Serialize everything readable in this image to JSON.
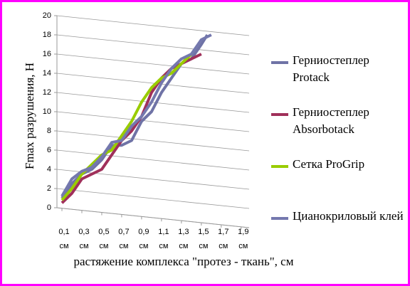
{
  "chart_data": {
    "type": "line",
    "y_label": "Fmax разрушения, Н",
    "x_label": "растяжение  комплекса \"протез  - ткань\", см",
    "xlim": [
      0.05,
      1.98
    ],
    "ylim": [
      0,
      20
    ],
    "yticks": [
      0,
      2,
      4,
      6,
      8,
      10,
      12,
      14,
      16,
      18,
      20
    ],
    "xticks": [
      {
        "value": 0.1,
        "label": "0,1 см"
      },
      {
        "value": 0.3,
        "label": "0,3 см"
      },
      {
        "value": 0.5,
        "label": "0,5 см"
      },
      {
        "value": 0.7,
        "label": "0,7 см"
      },
      {
        "value": 0.9,
        "label": "0,9 см"
      },
      {
        "value": 1.1,
        "label": "1,1 см"
      },
      {
        "value": 1.3,
        "label": "1,3 см"
      },
      {
        "value": 1.5,
        "label": "1,5 см"
      },
      {
        "value": 1.7,
        "label": "1,7 см"
      },
      {
        "value": 1.9,
        "label": "1,9 см"
      }
    ],
    "grid": true,
    "series": [
      {
        "name": "Герниостеплер Protack",
        "color": "#6f73a6",
        "x": [
          0.1,
          0.2,
          0.3,
          0.4,
          0.5,
          0.6,
          0.7,
          0.8,
          0.9,
          1.0,
          1.1,
          1.2,
          1.3,
          1.4,
          1.5,
          1.56
        ],
        "values": [
          1,
          2.5,
          3.5,
          4,
          5,
          6.5,
          6.5,
          7,
          9,
          10,
          12,
          13.5,
          15,
          15.5,
          17,
          18
        ]
      },
      {
        "name": "Герниостеплер Absorbotack",
        "color": "#a0305a",
        "x": [
          0.1,
          0.2,
          0.3,
          0.4,
          0.5,
          0.6,
          0.7,
          0.8,
          0.9,
          1.0,
          1.1,
          1.2,
          1.3,
          1.4,
          1.5
        ],
        "values": [
          0.5,
          1.5,
          3,
          3.5,
          4,
          5.5,
          7,
          8,
          9.5,
          12,
          13.5,
          14.5,
          15,
          15.5,
          16
        ]
      },
      {
        "name": "Сетка ProGrip",
        "color": "#99cc00",
        "x": [
          0.1,
          0.2,
          0.3,
          0.4,
          0.5,
          0.6,
          0.7,
          0.8,
          0.9,
          1.0,
          1.1,
          1.2,
          1.3,
          1.4
        ],
        "values": [
          0.8,
          2,
          3.5,
          4.5,
          5.5,
          6,
          7.5,
          9,
          11,
          12.5,
          13.5,
          14,
          15,
          16
        ]
      },
      {
        "name": "Цианокриловый клей",
        "color": "#7478ae",
        "x": [
          0.1,
          0.2,
          0.3,
          0.4,
          0.5,
          0.6,
          0.7,
          0.8,
          0.9,
          1.0,
          1.1,
          1.2,
          1.3,
          1.4,
          1.5,
          1.6
        ],
        "values": [
          1.2,
          3,
          3.8,
          4.2,
          5.3,
          6.8,
          7,
          8.5,
          9.5,
          11,
          13,
          14.5,
          15.5,
          16,
          17.5,
          18
        ]
      }
    ]
  }
}
